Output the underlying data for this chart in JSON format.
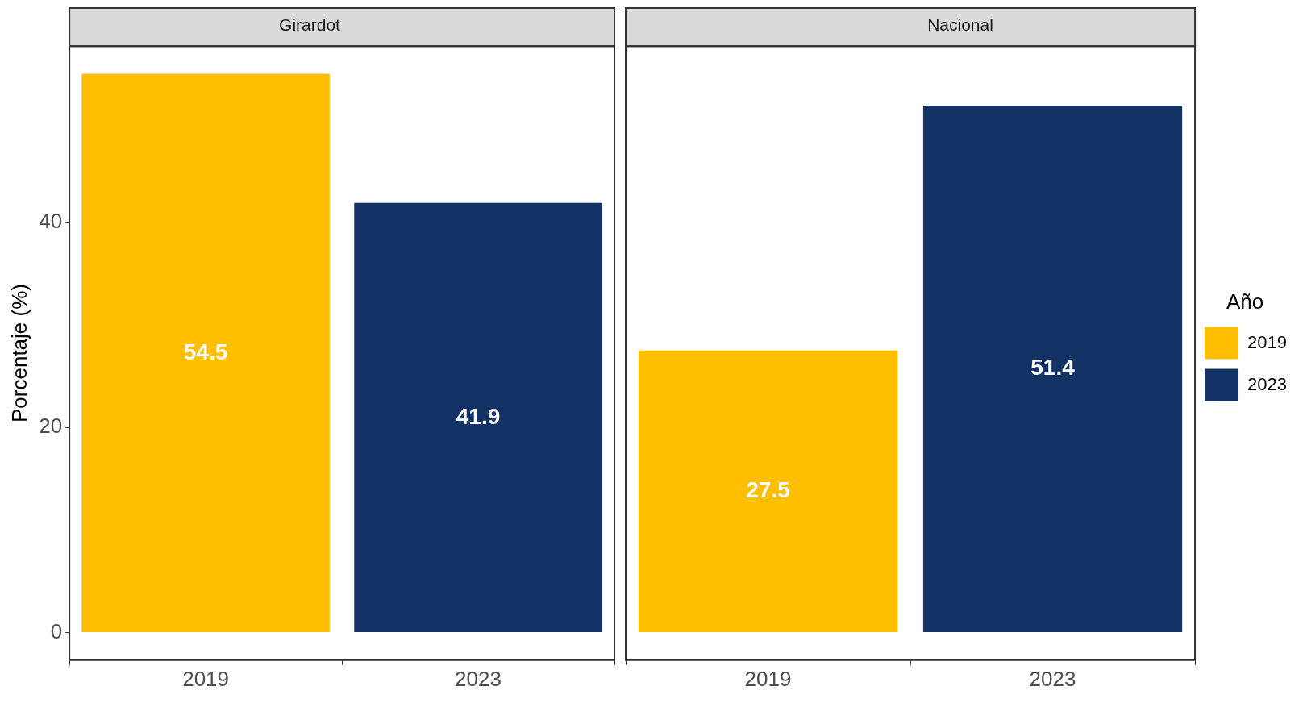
{
  "chart_data": [
    {
      "type": "bar",
      "title": "Girardot",
      "ylabel": "Porcentaje (%)",
      "categories": [
        "2019",
        "2023"
      ],
      "series": [
        {
          "color": "#fdbf00",
          "values": [
            54.5,
            null
          ]
        },
        {
          "color": "#133366",
          "values": [
            null,
            41.9
          ]
        }
      ],
      "ylim": [
        -2.7,
        57.2
      ],
      "yticks": [
        0,
        20,
        40
      ],
      "data_labels": true,
      "legend": false
    },
    {
      "type": "bar",
      "title": "Nacional",
      "categories": [
        "2019",
        "2023"
      ],
      "series": [
        {
          "name": "2019",
          "color": "#fdbf00",
          "values": [
            27.5,
            null
          ]
        },
        {
          "name": "2023",
          "color": "#133366",
          "values": [
            null,
            51.4
          ]
        }
      ],
      "ylim": [
        -2.7,
        57.2
      ],
      "yticks": [
        0,
        20,
        40
      ],
      "data_labels": true,
      "legend": "right",
      "legend_title": "Año",
      "tick_labels": "x"
    }
  ]
}
